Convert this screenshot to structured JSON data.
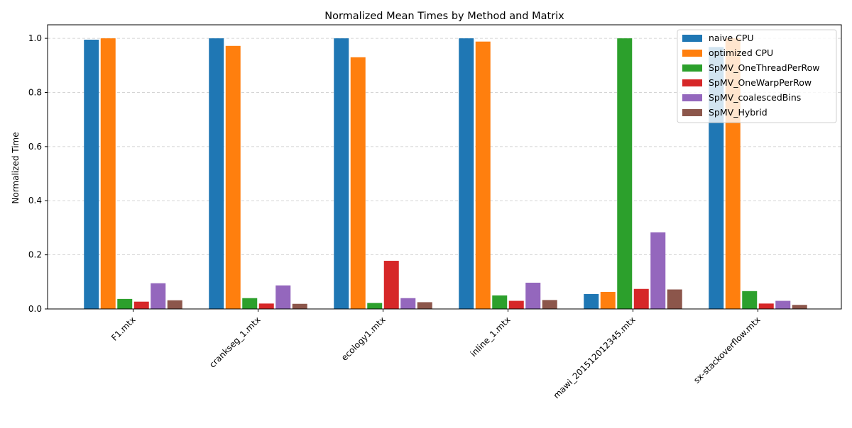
{
  "chart_data": {
    "type": "bar",
    "title": "Normalized Mean Times by Method and Matrix",
    "xlabel": "",
    "ylabel": "Normalized Time",
    "ylim": [
      0,
      1.05
    ],
    "yticks": [
      0.0,
      0.2,
      0.4,
      0.6,
      0.8,
      1.0
    ],
    "ytick_labels": [
      "0.0",
      "0.2",
      "0.4",
      "0.6",
      "0.8",
      "1.0"
    ],
    "grid": "y-dashed",
    "legend_position": "top-right",
    "categories": [
      "F1.mtx",
      "crankseg_1.mtx",
      "ecology1.mtx",
      "inline_1.mtx",
      "mawi_201512012345.mtx",
      "sx-stackoverflow.mtx"
    ],
    "series": [
      {
        "name": "naive CPU",
        "color": "#1f77b4",
        "values": [
          0.995,
          1.0,
          1.0,
          1.0,
          0.055,
          0.968
        ]
      },
      {
        "name": "optimized CPU",
        "color": "#ff7f0e",
        "values": [
          1.0,
          0.972,
          0.93,
          0.988,
          0.063,
          1.0
        ]
      },
      {
        "name": "SpMV_OneThreadPerRow",
        "color": "#2ca02c",
        "values": [
          0.037,
          0.04,
          0.022,
          0.05,
          1.0,
          0.066
        ]
      },
      {
        "name": "SpMV_OneWarpPerRow",
        "color": "#d62728",
        "values": [
          0.027,
          0.02,
          0.178,
          0.03,
          0.074,
          0.02
        ]
      },
      {
        "name": "SpMV_coalescedBins",
        "color": "#9467bd",
        "values": [
          0.095,
          0.087,
          0.04,
          0.097,
          0.283,
          0.03
        ]
      },
      {
        "name": "SpMV_Hybrid",
        "color": "#8c564b",
        "values": [
          0.032,
          0.019,
          0.025,
          0.033,
          0.072,
          0.015
        ]
      }
    ]
  }
}
